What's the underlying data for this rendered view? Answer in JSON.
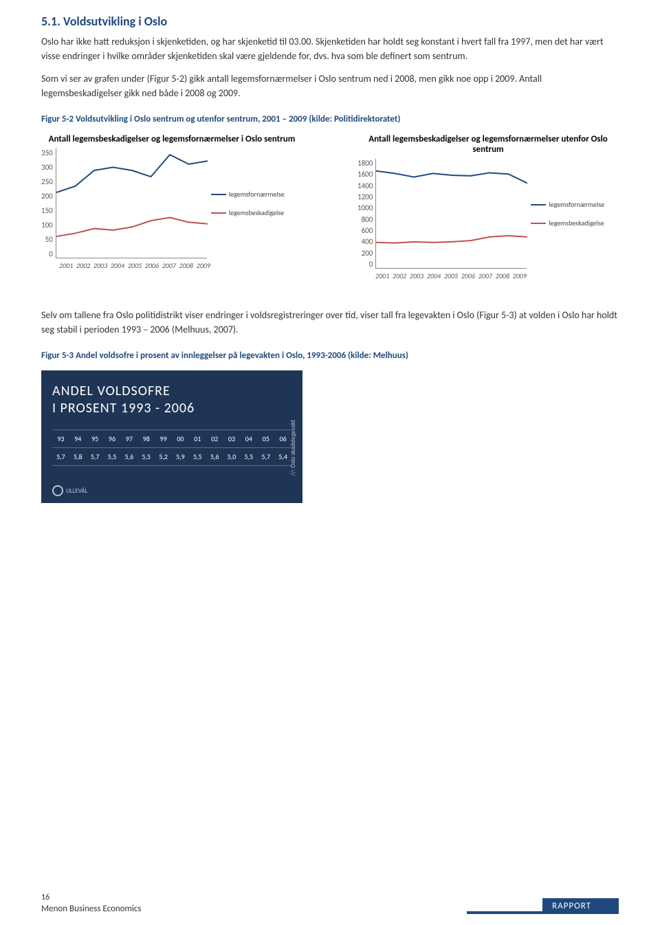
{
  "heading": "5.1.   Voldsutvikling i Oslo",
  "para1": "Oslo har ikke hatt reduksjon i skjenketiden, og har skjenketid til 03.00. Skjenketiden har holdt seg konstant i hvert fall fra 1997, men det har vært visse endringer i hvilke områder skjenketiden skal være gjeldende for, dvs. hva som ble definert som sentrum.",
  "para2": "Som vi ser av grafen under (Figur 5-2) gikk antall legemsfornærmelser i Oslo sentrum ned i 2008, men gikk noe opp i 2009. Antall legemsbeskadigelser gikk ned både i 2008 og 2009.",
  "fig52_caption": "Figur 5-2 Voldsutvikling i Oslo sentrum og utenfor sentrum, 2001 – 2009 (kilde: Politidirektoratet)",
  "chart_left": {
    "title": "Antall legemsbeskadigelser og legemsfornærmelser i Oslo sentrum",
    "ylim": [
      0,
      350
    ],
    "ytick_step": 50,
    "x_labels": [
      "2001",
      "2002",
      "2003",
      "2004",
      "2005",
      "2006",
      "2007",
      "2008",
      "2009"
    ],
    "series": [
      {
        "name": "legemsfornærmelse",
        "color": "#1f497d",
        "values": [
          210,
          230,
          280,
          290,
          280,
          260,
          330,
          300,
          310
        ]
      },
      {
        "name": "legemsbeskadigelse",
        "color": "#c0504d",
        "values": [
          70,
          80,
          95,
          90,
          100,
          120,
          130,
          115,
          110
        ]
      }
    ]
  },
  "chart_right": {
    "title": "Antall legemsbeskadigelser og legemsfornærmelser utenfor Oslo sentrum",
    "ylim": [
      0,
      1800
    ],
    "ytick_step": 200,
    "x_labels": [
      "2001",
      "2002",
      "2003",
      "2004",
      "2005",
      "2006",
      "2007",
      "2008",
      "2009"
    ],
    "series": [
      {
        "name": "legemsfornærmelse",
        "color": "#1f497d",
        "values": [
          1600,
          1560,
          1500,
          1560,
          1530,
          1520,
          1570,
          1550,
          1400
        ]
      },
      {
        "name": "legemsbeskadigelse",
        "color": "#c0504d",
        "values": [
          430,
          420,
          440,
          430,
          440,
          460,
          520,
          540,
          520
        ]
      }
    ]
  },
  "legend_labels": {
    "fornaermelse": "legemsfornærmelse",
    "beskadigelse": "legemsbeskadigelse"
  },
  "para3": "Selv om tallene fra Oslo politidistrikt viser endringer i voldsregistreringer over tid, viser tall fra legevakten i Oslo (Figur 5-3) at volden i Oslo har holdt seg stabil i perioden 1993 – 2006 (Melhuus, 2007).",
  "fig53_caption": "Figur 5-3 Andel voldsofre i prosent av innleggelser på legevakten i Oslo, 1993-2006 (kilde: Melhuus)",
  "table": {
    "title_line1": "ANDEL VOLDSOFRE",
    "title_line2": "I PROSENT 1993 - 2006",
    "headers": [
      "93",
      "94",
      "95",
      "96",
      "97",
      "98",
      "99",
      "00",
      "01",
      "02",
      "03",
      "04",
      "05",
      "06"
    ],
    "values": [
      "5,7",
      "5,8",
      "5,7",
      "5,5",
      "5,6",
      "5,5",
      "5,2",
      "5,9",
      "5,5",
      "5,6",
      "5,0",
      "5,5",
      "5,7",
      "5,4"
    ],
    "side_label": "//: Oslo skadelegevakt",
    "logo_text": "ULLEVÅL",
    "bg_color": "#1f3556"
  },
  "footer": {
    "page_number": "16",
    "org": "Menon Business Economics",
    "report": "RAPPORT"
  },
  "colors": {
    "heading": "#1f497d",
    "series_blue": "#1f497d",
    "series_orange": "#c0504d"
  }
}
